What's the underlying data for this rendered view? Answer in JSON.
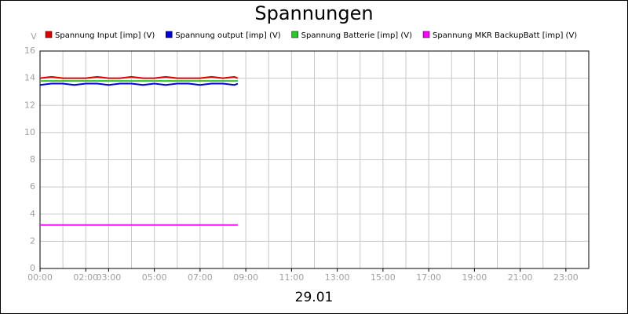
{
  "chart_data": {
    "type": "line",
    "title": "Spannungen",
    "ylabel": "V",
    "xlabel": "29.01",
    "xlim": [
      0,
      24
    ],
    "ylim": [
      0,
      16
    ],
    "yticks": [
      0,
      2,
      4,
      6,
      8,
      10,
      12,
      14,
      16
    ],
    "xticks": [
      {
        "value": 0,
        "label": "00:00"
      },
      {
        "value": 2,
        "label": "02:00"
      },
      {
        "value": 3,
        "label": "03:00"
      },
      {
        "value": 5,
        "label": "05:00"
      },
      {
        "value": 7,
        "label": "07:00"
      },
      {
        "value": 9,
        "label": "09:00"
      },
      {
        "value": 11,
        "label": "11:00"
      },
      {
        "value": 13,
        "label": "13:00"
      },
      {
        "value": 15,
        "label": "15:00"
      },
      {
        "value": 17,
        "label": "17:00"
      },
      {
        "value": 19,
        "label": "19:00"
      },
      {
        "value": 21,
        "label": "21:00"
      },
      {
        "value": 23,
        "label": "23:00"
      }
    ],
    "xgrid": [
      0,
      1,
      2,
      3,
      4,
      5,
      6,
      7,
      8,
      9,
      10,
      11,
      12,
      13,
      14,
      15,
      16,
      17,
      18,
      19,
      20,
      21,
      22,
      23,
      24
    ],
    "grid": true,
    "x": [
      0,
      0.5,
      1,
      1.5,
      2,
      2.5,
      3,
      3.5,
      4,
      4.5,
      5,
      5.5,
      6,
      6.5,
      7,
      7.5,
      8,
      8.5,
      8.65
    ],
    "series": [
      {
        "name": "Spannung Input [imp] (V)",
        "color": "#e00000",
        "values": [
          14.0,
          14.1,
          14.0,
          14.0,
          14.0,
          14.1,
          14.0,
          14.0,
          14.1,
          14.0,
          14.0,
          14.1,
          14.0,
          14.0,
          14.0,
          14.1,
          14.0,
          14.1,
          14.0
        ]
      },
      {
        "name": "Spannung output [imp] (V)",
        "color": "#0000e0",
        "values": [
          13.5,
          13.6,
          13.6,
          13.5,
          13.6,
          13.6,
          13.5,
          13.6,
          13.6,
          13.5,
          13.6,
          13.5,
          13.6,
          13.6,
          13.5,
          13.6,
          13.6,
          13.5,
          13.6
        ]
      },
      {
        "name": "Spannung Batterie [imp] (V)",
        "color": "#22cc22",
        "values": [
          13.8,
          13.8,
          13.8,
          13.8,
          13.8,
          13.8,
          13.8,
          13.8,
          13.8,
          13.8,
          13.8,
          13.8,
          13.8,
          13.8,
          13.8,
          13.8,
          13.8,
          13.8,
          13.8
        ]
      },
      {
        "name": "Spannung MKR BackupBatt [imp] (V)",
        "color": "#ff00ff",
        "values": [
          3.2,
          3.2,
          3.2,
          3.2,
          3.2,
          3.2,
          3.2,
          3.2,
          3.2,
          3.2,
          3.2,
          3.2,
          3.2,
          3.2,
          3.2,
          3.2,
          3.2,
          3.2,
          3.2
        ]
      }
    ]
  }
}
